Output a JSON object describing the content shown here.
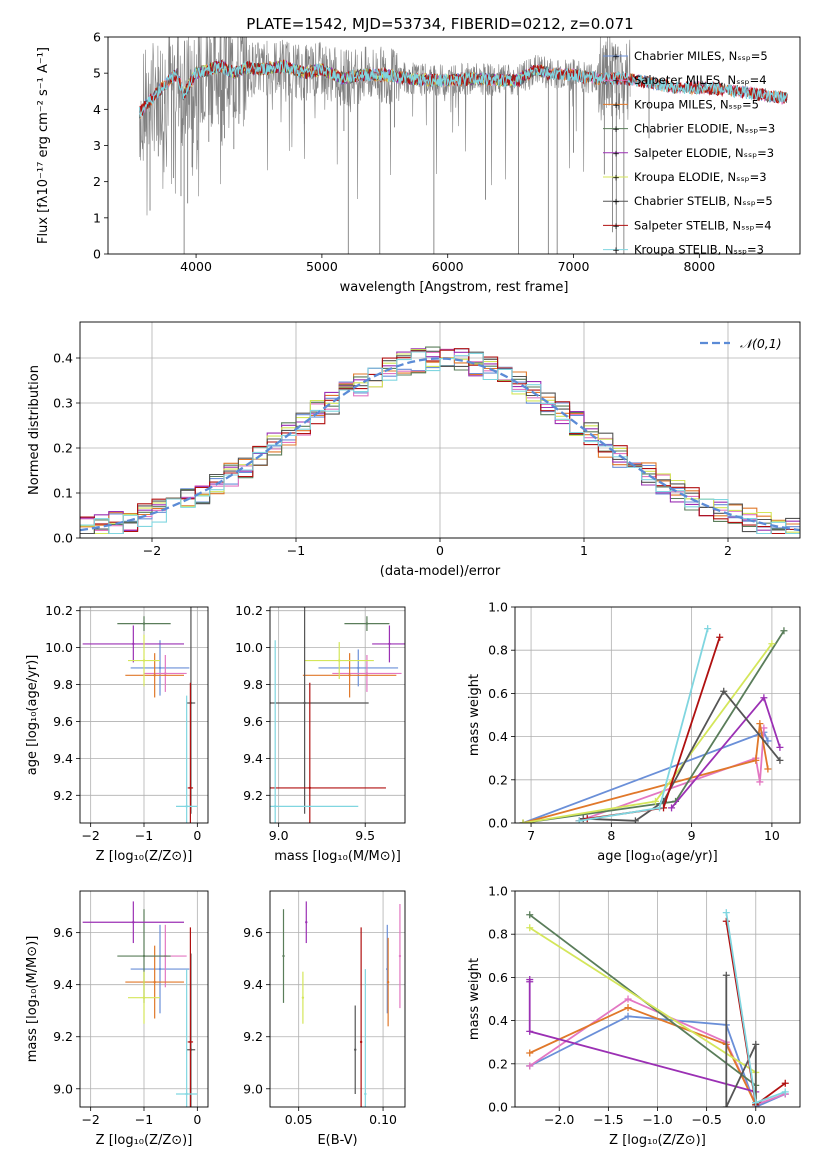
{
  "title": "PLATE=1542, MJD=53734, FIBERID=0212, z=0.071",
  "colors": {
    "chabrier_miles": "#6a8fd8",
    "salpeter_miles": "#e377c2",
    "kroupa_miles": "#e0782a",
    "chabrier_elodie": "#5a7d5a",
    "salpeter_elodie": "#9b30b4",
    "kroupa_elodie": "#d4e65a",
    "chabrier_stelib": "#555555",
    "salpeter_stelib": "#b01010",
    "kroupa_stelib": "#80d6e0",
    "data": "#808080",
    "grid": "#b0b0b0",
    "normal_curve": "#5b8bd6"
  },
  "chart_data": [
    {
      "id": "spectrum",
      "type": "line",
      "title": "PLATE=1542, MJD=53734, FIBERID=0212, z=0.071",
      "xlabel": "wavelength [Angstrom, rest frame]",
      "ylabel": "Flux [fλ10⁻¹⁷ erg cm⁻² s⁻¹ A⁻¹]",
      "xlim": [
        3300,
        8800
      ],
      "ylim": [
        0,
        6
      ],
      "xticks": [
        "4000",
        "5000",
        "6000",
        "7000",
        "8000"
      ],
      "yticks": [
        "0",
        "1",
        "2",
        "3",
        "4",
        "5",
        "6"
      ],
      "legend_position": "right",
      "legend": [
        {
          "label": "Chabrier MILES, Nₛₛₚ=5",
          "color": "chabrier_miles"
        },
        {
          "label": "Salpeter MILES, Nₛₛₚ=4",
          "color": "salpeter_miles"
        },
        {
          "label": "Kroupa MILES, Nₛₛₚ=5",
          "color": "kroupa_miles"
        },
        {
          "label": "Chabrier ELODIE, Nₛₛₚ=3",
          "color": "chabrier_elodie"
        },
        {
          "label": "Salpeter ELODIE, Nₛₛₚ=3",
          "color": "salpeter_elodie"
        },
        {
          "label": "Kroupa ELODIE, Nₛₛₚ=3",
          "color": "kroupa_elodie"
        },
        {
          "label": "Chabrier STELIB, Nₛₛₚ=5",
          "color": "chabrier_stelib"
        },
        {
          "label": "Salpeter STELIB, Nₛₛₚ=4",
          "color": "salpeter_stelib"
        },
        {
          "label": "Kroupa STELIB, Nₛₛₚ=3",
          "color": "kroupa_stelib"
        }
      ],
      "continuum": {
        "x": [
          3550,
          3700,
          3850,
          3900,
          4000,
          4100,
          4200,
          4300,
          4400,
          4500,
          4700,
          4861,
          5000,
          5175,
          5300,
          5500,
          5700,
          5890,
          6000,
          6200,
          6400,
          6563,
          6700,
          6800,
          7000,
          7200,
          7400,
          7600,
          7800,
          8000,
          8200,
          8400,
          8600,
          8700
        ],
        "y": [
          3.9,
          4.5,
          5.0,
          4.4,
          5.0,
          5.1,
          5.2,
          5.0,
          5.15,
          5.1,
          5.2,
          5.0,
          5.1,
          4.85,
          4.95,
          4.95,
          4.85,
          4.8,
          4.8,
          4.85,
          4.8,
          4.8,
          5.1,
          5.0,
          4.95,
          4.85,
          4.85,
          4.75,
          4.6,
          4.6,
          4.55,
          4.45,
          4.35,
          4.3
        ]
      },
      "absorption_lines": [
        {
          "x": 3634,
          "y": 1.2
        },
        {
          "x": 3700,
          "y": 2.7
        },
        {
          "x": 3820,
          "y": 2.1
        },
        {
          "x": 3880,
          "y": 1.6
        },
        {
          "x": 3905,
          "y": 0.0
        },
        {
          "x": 3933,
          "y": 1.4
        },
        {
          "x": 3968,
          "y": 2.4
        },
        {
          "x": 4101,
          "y": 3.1
        },
        {
          "x": 4226,
          "y": 3.2
        },
        {
          "x": 4300,
          "y": 2.9
        },
        {
          "x": 4340,
          "y": 3.6
        },
        {
          "x": 4861,
          "y": 3.6
        },
        {
          "x": 5175,
          "y": 3.4
        },
        {
          "x": 5210,
          "y": 0.0
        },
        {
          "x": 5460,
          "y": 0.0
        },
        {
          "x": 5577,
          "y": 3.5
        },
        {
          "x": 5890,
          "y": 0.0
        },
        {
          "x": 6300,
          "y": 1.5
        },
        {
          "x": 6563,
          "y": 0.0
        },
        {
          "x": 6800,
          "y": 0.0
        },
        {
          "x": 6870,
          "y": 0.0
        },
        {
          "x": 7000,
          "y": 2.8
        },
        {
          "x": 7245,
          "y": 2.2
        },
        {
          "x": 7310,
          "y": 0.6
        },
        {
          "x": 7340,
          "y": 0.0
        },
        {
          "x": 7400,
          "y": 0.0
        },
        {
          "x": 7600,
          "y": 3.2
        }
      ]
    },
    {
      "id": "residual-histogram",
      "type": "bar",
      "xlabel": "(data-model)/error",
      "ylabel": "Normed distribution",
      "xlim": [
        -2.5,
        2.5
      ],
      "ylim": [
        0,
        0.48
      ],
      "xticks": [
        "−2",
        "−1",
        "0",
        "1",
        "2"
      ],
      "yticks": [
        "0.0",
        "0.1",
        "0.2",
        "0.3",
        "0.4"
      ],
      "legend": [
        {
          "label": "𝒩(0,1)",
          "color": "normal_curve"
        }
      ],
      "legend_position": "top-right",
      "normal_curve": {
        "mean": 0,
        "sigma": 1
      }
    },
    {
      "id": "age-vs-z",
      "type": "scatter",
      "xlabel": "Z [log₁₀(Z/Z⊙)]",
      "ylabel": "age  [log₁₀(age/yr)]",
      "xlim": [
        -2.2,
        0.2
      ],
      "ylim": [
        9.05,
        10.22
      ],
      "xticks": [
        "−2",
        "−1",
        "0"
      ],
      "yticks": [
        "9.2",
        "9.4",
        "9.6",
        "9.8",
        "10.0",
        "10.2"
      ],
      "points": [
        {
          "series": "chabrier_miles",
          "x": -0.7,
          "y": 9.89,
          "xerr": 0.55,
          "yerr": 0.15
        },
        {
          "series": "salpeter_miles",
          "x": -0.6,
          "y": 9.86,
          "xerr": 0.4,
          "yerr": 0.1
        },
        {
          "series": "kroupa_miles",
          "x": -0.8,
          "y": 9.85,
          "xerr": 0.55,
          "yerr": 0.12
        },
        {
          "series": "chabrier_elodie",
          "x": -1.0,
          "y": 10.13,
          "xerr": 0.5,
          "yerr": 0.04
        },
        {
          "series": "salpeter_elodie",
          "x": -1.2,
          "y": 10.02,
          "xerr": 0.95,
          "yerr": 0.1
        },
        {
          "series": "kroupa_elodie",
          "x": -1.0,
          "y": 9.93,
          "xerr": 0.3,
          "yerr": 0.14
        },
        {
          "series": "chabrier_stelib",
          "x": -0.12,
          "y": 9.7,
          "xerr": 0.08,
          "yerr": 0.6
        },
        {
          "series": "salpeter_stelib",
          "x": -0.13,
          "y": 9.24,
          "xerr": 0.05,
          "yerr": 0.57
        },
        {
          "series": "kroupa_stelib",
          "x": -0.2,
          "y": 9.14,
          "xerr": 0.2,
          "yerr": 0.6
        }
      ]
    },
    {
      "id": "age-vs-mass",
      "type": "scatter",
      "xlabel": "mass [log₁₀(M/M⊙)]",
      "ylabel": "",
      "xlim": [
        8.95,
        9.73
      ],
      "ylim": [
        9.05,
        10.22
      ],
      "xticks": [
        "9.0",
        "9.5"
      ],
      "yticks": [
        "9.2",
        "9.4",
        "9.6",
        "9.8",
        "10.0",
        "10.2"
      ],
      "points": [
        {
          "series": "chabrier_miles",
          "x": 9.46,
          "y": 9.89,
          "xerr": 0.23,
          "yerr": 0.1
        },
        {
          "series": "salpeter_miles",
          "x": 9.51,
          "y": 9.86,
          "xerr": 0.2,
          "yerr": 0.1
        },
        {
          "series": "kroupa_miles",
          "x": 9.41,
          "y": 9.85,
          "xerr": 0.27,
          "yerr": 0.12
        },
        {
          "series": "chabrier_elodie",
          "x": 9.51,
          "y": 10.13,
          "xerr": 0.13,
          "yerr": 0.04
        },
        {
          "series": "salpeter_elodie",
          "x": 9.64,
          "y": 10.02,
          "xerr": 0.1,
          "yerr": 0.1
        },
        {
          "series": "kroupa_elodie",
          "x": 9.35,
          "y": 9.93,
          "xerr": 0.2,
          "yerr": 0.1
        },
        {
          "series": "chabrier_stelib",
          "x": 9.15,
          "y": 9.7,
          "xerr": 0.37,
          "yerr": 0.6
        },
        {
          "series": "salpeter_stelib",
          "x": 9.18,
          "y": 9.24,
          "xerr": 0.44,
          "yerr": 0.57
        },
        {
          "series": "kroupa_stelib",
          "x": 8.98,
          "y": 9.14,
          "xerr": 0.48,
          "yerr": 0.9
        }
      ]
    },
    {
      "id": "mass-weight-vs-age",
      "type": "line",
      "xlabel": "age  [log₁₀(age/yr)]",
      "ylabel": "mass weight",
      "xlim": [
        6.8,
        10.35
      ],
      "ylim": [
        0,
        1
      ],
      "xticks": [
        "7",
        "8",
        "9",
        "10"
      ],
      "yticks": [
        "0.0",
        "0.2",
        "0.4",
        "0.6",
        "0.8",
        "1.0"
      ],
      "series": [
        {
          "name": "chabrier_miles",
          "x": [
            6.9,
            9.9,
            9.95
          ],
          "y": [
            0.0,
            0.42,
            0.38
          ]
        },
        {
          "name": "salpeter_miles",
          "x": [
            7.6,
            9.8,
            9.85,
            9.9
          ],
          "y": [
            0.01,
            0.3,
            0.19,
            0.44
          ]
        },
        {
          "name": "kroupa_miles",
          "x": [
            6.9,
            9.8,
            9.85,
            9.95
          ],
          "y": [
            0.0,
            0.29,
            0.46,
            0.25
          ]
        },
        {
          "name": "chabrier_elodie",
          "x": [
            6.9,
            8.8,
            10.15
          ],
          "y": [
            0.0,
            0.1,
            0.89
          ]
        },
        {
          "name": "salpeter_elodie",
          "x": [
            8.75,
            9.9,
            10.1
          ],
          "y": [
            0.07,
            0.58,
            0.35
          ]
        },
        {
          "name": "kroupa_elodie",
          "x": [
            6.9,
            8.55,
            10.0
          ],
          "y": [
            0.0,
            0.1,
            0.83
          ]
        },
        {
          "name": "chabrier_stelib",
          "x": [
            7.65,
            8.3,
            8.65,
            9.4,
            10.1
          ],
          "y": [
            0.02,
            0.01,
            0.1,
            0.61,
            0.29
          ]
        },
        {
          "name": "salpeter_stelib",
          "x": [
            7.6,
            7.7,
            8.65,
            9.35
          ],
          "y": [
            0.01,
            0.02,
            0.07,
            0.86
          ]
        },
        {
          "name": "kroupa_stelib",
          "x": [
            7.6,
            8.6,
            9.2
          ],
          "y": [
            0.01,
            0.07,
            0.9
          ]
        }
      ]
    },
    {
      "id": "mass-vs-z",
      "type": "scatter",
      "xlabel": "Z [log₁₀(Z/Z⊙)]",
      "ylabel": "mass [log₁₀(M/M⊙)]",
      "xlim": [
        -2.2,
        0.2
      ],
      "ylim": [
        8.93,
        9.76
      ],
      "xticks": [
        "−2",
        "−1",
        "0"
      ],
      "yticks": [
        "9.0",
        "9.2",
        "9.4",
        "9.6"
      ],
      "points": [
        {
          "series": "chabrier_miles",
          "x": -0.7,
          "y": 9.46,
          "xerr": 0.55,
          "yerr": 0.17
        },
        {
          "series": "salpeter_miles",
          "x": -0.6,
          "y": 9.51,
          "xerr": 0.4,
          "yerr": 0.12
        },
        {
          "series": "kroupa_miles",
          "x": -0.8,
          "y": 9.41,
          "xerr": 0.55,
          "yerr": 0.14
        },
        {
          "series": "chabrier_elodie",
          "x": -1.0,
          "y": 9.51,
          "xerr": 0.5,
          "yerr": 0.18
        },
        {
          "series": "salpeter_elodie",
          "x": -1.2,
          "y": 9.64,
          "xerr": 0.95,
          "yerr": 0.08
        },
        {
          "series": "kroupa_elodie",
          "x": -1.0,
          "y": 9.35,
          "xerr": 0.3,
          "yerr": 0.1
        },
        {
          "series": "chabrier_stelib",
          "x": -0.12,
          "y": 9.15,
          "xerr": 0.08,
          "yerr": 0.37
        },
        {
          "series": "salpeter_stelib",
          "x": -0.13,
          "y": 9.18,
          "xerr": 0.05,
          "yerr": 0.44
        },
        {
          "series": "kroupa_stelib",
          "x": -0.2,
          "y": 8.98,
          "xerr": 0.2,
          "yerr": 0.48
        }
      ]
    },
    {
      "id": "mass-vs-ebv",
      "type": "scatter",
      "xlabel": "E(B-V)",
      "ylabel": "",
      "xlim": [
        0.033,
        0.113
      ],
      "ylim": [
        8.93,
        9.76
      ],
      "xticks": [
        "0.05",
        "0.10"
      ],
      "yticks": [
        "9.0",
        "9.2",
        "9.4",
        "9.6"
      ],
      "points": [
        {
          "series": "chabrier_miles",
          "x": 0.1025,
          "y": 9.46,
          "xerr": 0,
          "yerr": 0.17
        },
        {
          "series": "salpeter_miles",
          "x": 0.11,
          "y": 9.51,
          "xerr": 0,
          "yerr": 0.2
        },
        {
          "series": "kroupa_miles",
          "x": 0.103,
          "y": 9.41,
          "xerr": 0,
          "yerr": 0.17
        },
        {
          "series": "chabrier_elodie",
          "x": 0.041,
          "y": 9.51,
          "xerr": 0,
          "yerr": 0.18
        },
        {
          "series": "salpeter_elodie",
          "x": 0.0545,
          "y": 9.64,
          "xerr": 0,
          "yerr": 0.08
        },
        {
          "series": "kroupa_elodie",
          "x": 0.0525,
          "y": 9.35,
          "xerr": 0,
          "yerr": 0.1
        },
        {
          "series": "chabrier_stelib",
          "x": 0.0835,
          "y": 9.15,
          "xerr": 0,
          "yerr": 0.17
        },
        {
          "series": "salpeter_stelib",
          "x": 0.087,
          "y": 9.18,
          "xerr": 0,
          "yerr": 0.44
        },
        {
          "series": "kroupa_stelib",
          "x": 0.0895,
          "y": 8.98,
          "xerr": 0,
          "yerr": 0.48
        }
      ]
    },
    {
      "id": "mass-weight-vs-z",
      "type": "line",
      "xlabel": "Z [log₁₀(Z/Z⊙)]",
      "ylabel": "mass weight",
      "xlim": [
        -2.45,
        0.45
      ],
      "ylim": [
        0,
        1
      ],
      "xticks": [
        "−2.0",
        "−1.5",
        "−1.0",
        "−0.5",
        "0.0"
      ],
      "yticks": [
        "0.0",
        "0.2",
        "0.4",
        "0.6",
        "0.8",
        "1.0"
      ],
      "series": [
        {
          "name": "chabrier_miles",
          "x": [
            -2.3,
            -1.3,
            -0.3,
            0.0,
            0.3
          ],
          "y": [
            0.19,
            0.42,
            0.38,
            0.0,
            0.06
          ]
        },
        {
          "name": "salpeter_miles",
          "x": [
            -2.3,
            -1.3,
            -0.3,
            0.0,
            0.3
          ],
          "y": [
            0.19,
            0.5,
            0.3,
            0.01,
            0.06
          ]
        },
        {
          "name": "kroupa_miles",
          "x": [
            -2.3,
            -1.3,
            -0.3,
            0.0
          ],
          "y": [
            0.25,
            0.46,
            0.29,
            0.01
          ]
        },
        {
          "name": "chabrier_elodie",
          "x": [
            -2.3,
            0.0,
            0.0
          ],
          "y": [
            0.89,
            0.1,
            0.01
          ]
        },
        {
          "name": "salpeter_elodie",
          "x": [
            -2.3,
            -2.3,
            -2.3,
            0.0
          ],
          "y": [
            0.58,
            0.59,
            0.35,
            0.07
          ]
        },
        {
          "name": "kroupa_elodie",
          "x": [
            -2.3,
            0.0,
            0.0
          ],
          "y": [
            0.83,
            0.16,
            0.01
          ]
        },
        {
          "name": "chabrier_stelib",
          "x": [
            -0.3,
            -0.3,
            0.0,
            0.0
          ],
          "y": [
            0.61,
            0.0,
            0.29,
            0.02
          ]
        },
        {
          "name": "salpeter_stelib",
          "x": [
            -0.3,
            0.0,
            0.3
          ],
          "y": [
            0.86,
            0.01,
            0.11
          ]
        },
        {
          "name": "kroupa_stelib",
          "x": [
            -0.3,
            0.0,
            0.3
          ],
          "y": [
            0.9,
            0.02,
            0.07
          ]
        }
      ]
    }
  ]
}
